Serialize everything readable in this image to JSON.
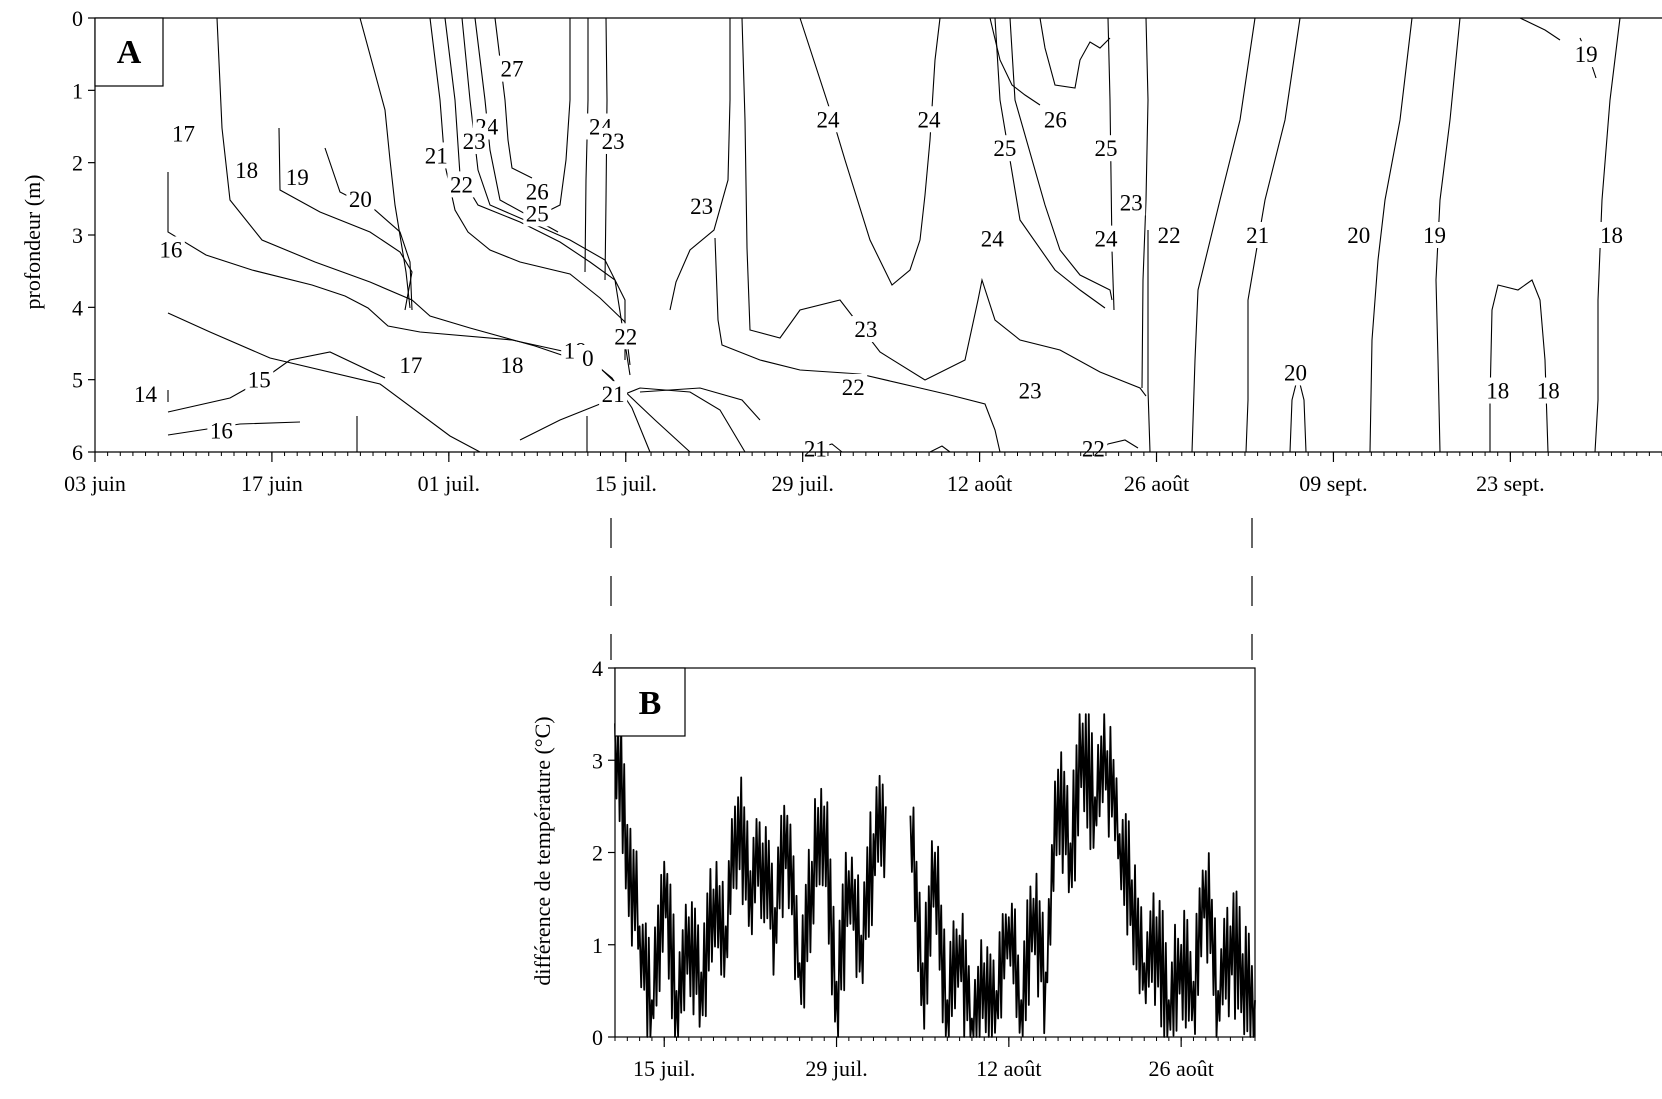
{
  "chart_data": [
    {
      "panel": "A",
      "type": "contour",
      "title": "",
      "xlabel": "",
      "ylabel": "profondeur (m)",
      "panel_label": "A",
      "x_range": [
        "2023-06-03",
        "2023-10-05"
      ],
      "ylim": [
        6,
        0
      ],
      "y_ticks": [
        "0",
        "1",
        "2",
        "3",
        "4",
        "5",
        "6"
      ],
      "x_ticks": [
        "03 juin",
        "17 juin",
        "01 juil.",
        "15 juil.",
        "29 juil.",
        "12 août",
        "26 août",
        "09 sept.",
        "23 sept."
      ],
      "x_tick_dates": [
        "2023-06-03",
        "2023-06-17",
        "2023-07-01",
        "2023-07-15",
        "2023-07-29",
        "2023-08-12",
        "2023-08-26",
        "2023-09-09",
        "2023-09-23"
      ],
      "grid": false,
      "contour_labels": [
        {
          "text": "27",
          "date": "2023-07-06",
          "depth": 0.7
        },
        {
          "text": "24",
          "date": "2023-07-04",
          "depth": 1.5
        },
        {
          "text": "23",
          "date": "2023-07-03",
          "depth": 1.7
        },
        {
          "text": "21",
          "date": "2023-06-30",
          "depth": 1.9
        },
        {
          "text": "22",
          "date": "2023-07-02",
          "depth": 2.3
        },
        {
          "text": "26",
          "date": "2023-07-08",
          "depth": 2.4
        },
        {
          "text": "25",
          "date": "2023-07-08",
          "depth": 2.7
        },
        {
          "text": "24",
          "date": "2023-07-13",
          "depth": 1.5
        },
        {
          "text": "23",
          "date": "2023-07-14",
          "depth": 1.7
        },
        {
          "text": "17",
          "date": "2023-06-10",
          "depth": 1.6
        },
        {
          "text": "18",
          "date": "2023-06-15",
          "depth": 2.1
        },
        {
          "text": "19",
          "date": "2023-06-19",
          "depth": 2.2
        },
        {
          "text": "20",
          "date": "2023-06-24",
          "depth": 2.5
        },
        {
          "text": "16",
          "date": "2023-06-09",
          "depth": 3.2
        },
        {
          "text": "15",
          "date": "2023-06-16",
          "depth": 5.0
        },
        {
          "text": "14",
          "date": "2023-06-07",
          "depth": 5.2
        },
        {
          "text": "16",
          "date": "2023-06-13",
          "depth": 5.7
        },
        {
          "text": "17",
          "date": "2023-06-28",
          "depth": 4.8
        },
        {
          "text": "18",
          "date": "2023-07-06",
          "depth": 4.8
        },
        {
          "text": "19",
          "date": "2023-07-11",
          "depth": 4.6
        },
        {
          "text": "0",
          "date": "2023-07-12",
          "depth": 4.7
        },
        {
          "text": "22",
          "date": "2023-07-15",
          "depth": 4.4
        },
        {
          "text": "21",
          "date": "2023-07-14",
          "depth": 5.2
        },
        {
          "text": "23",
          "date": "2023-07-21",
          "depth": 2.6
        },
        {
          "text": "24",
          "date": "2023-07-31",
          "depth": 1.4
        },
        {
          "text": "23",
          "date": "2023-08-03",
          "depth": 4.3
        },
        {
          "text": "22",
          "date": "2023-08-02",
          "depth": 5.1
        },
        {
          "text": "21",
          "date": "2023-07-30",
          "depth": 5.95
        },
        {
          "text": "24",
          "date": "2023-08-08",
          "depth": 1.4
        },
        {
          "text": "25",
          "date": "2023-08-14",
          "depth": 1.8
        },
        {
          "text": "26",
          "date": "2023-08-18",
          "depth": 1.4
        },
        {
          "text": "25",
          "date": "2023-08-22",
          "depth": 1.8
        },
        {
          "text": "24",
          "date": "2023-08-13",
          "depth": 3.05
        },
        {
          "text": "23",
          "date": "2023-08-16",
          "depth": 5.15
        },
        {
          "text": "24",
          "date": "2023-08-22",
          "depth": 3.05
        },
        {
          "text": "23",
          "date": "2023-08-24",
          "depth": 2.55
        },
        {
          "text": "22",
          "date": "2023-08-27",
          "depth": 3.0
        },
        {
          "text": "22",
          "date": "2023-08-21",
          "depth": 5.95
        },
        {
          "text": "21",
          "date": "2023-09-03",
          "depth": 3.0
        },
        {
          "text": "20",
          "date": "2023-09-11",
          "depth": 3.0
        },
        {
          "text": "19",
          "date": "2023-09-17",
          "depth": 3.0
        },
        {
          "text": "20",
          "date": "2023-09-06",
          "depth": 4.9
        },
        {
          "text": "18",
          "date": "2023-09-22",
          "depth": 5.15
        },
        {
          "text": "18",
          "date": "2023-09-26",
          "depth": 5.15
        },
        {
          "text": "18",
          "date": "2023-10-01",
          "depth": 3.0
        },
        {
          "text": "19",
          "date": "2023-09-29",
          "depth": 0.5
        }
      ]
    },
    {
      "panel": "B",
      "type": "line",
      "title": "",
      "xlabel": "",
      "ylabel": "différence de température (°C)",
      "panel_label": "B",
      "x_range": [
        "2023-07-11",
        "2023-09-01"
      ],
      "ylim": [
        0,
        4
      ],
      "y_ticks": [
        "0",
        "1",
        "2",
        "3",
        "4"
      ],
      "x_ticks": [
        "15 juil.",
        "29 juil.",
        "12 août",
        "26 août"
      ],
      "x_tick_dates": [
        "2023-07-15",
        "2023-07-29",
        "2023-08-12",
        "2023-08-26"
      ],
      "grid": false,
      "series": [
        {
          "x": [
            "2023-07-11",
            "2023-07-12",
            "2023-07-13",
            "2023-07-14",
            "2023-07-15",
            "2023-07-16",
            "2023-07-17",
            "2023-07-18",
            "2023-07-19",
            "2023-07-20",
            "2023-07-21",
            "2023-07-22",
            "2023-07-23",
            "2023-07-24",
            "2023-07-25",
            "2023-07-26",
            "2023-07-27",
            "2023-07-28",
            "2023-07-29",
            "2023-07-30",
            "2023-07-31",
            "2023-08-01",
            "2023-08-02",
            null,
            "2023-08-04",
            "2023-08-05",
            "2023-08-06",
            "2023-08-07",
            "2023-08-08",
            "2023-08-09",
            "2023-08-10",
            "2023-08-11",
            "2023-08-12",
            "2023-08-13",
            "2023-08-14",
            "2023-08-15",
            "2023-08-16",
            "2023-08-17",
            "2023-08-18",
            "2023-08-19",
            "2023-08-20",
            "2023-08-21",
            "2023-08-22",
            "2023-08-23",
            "2023-08-24",
            "2023-08-25",
            "2023-08-26",
            "2023-08-27",
            "2023-08-28",
            "2023-08-29",
            "2023-08-30",
            "2023-08-31",
            "2023-09-01"
          ],
          "values": [
            3.4,
            2.3,
            1.2,
            0.4,
            1.9,
            0.5,
            1.3,
            0.7,
            1.6,
            1.2,
            2.6,
            1.8,
            2.1,
            1.4,
            2.4,
            0.8,
            1.9,
            2.5,
            0.6,
            1.8,
            1.1,
            2.2,
            2.5,
            null,
            2.4,
            0.8,
            2.0,
            0.4,
            1.1,
            0.2,
            0.8,
            0.5,
            1.3,
            0.4,
            1.5,
            0.7,
            2.9,
            2.1,
            3.4,
            2.6,
            3.1,
            2.2,
            1.7,
            0.8,
            1.3,
            0.4,
            1.0,
            0.6,
            1.8,
            0.5,
            1.2,
            0.9,
            0.4
          ]
        }
      ]
    }
  ]
}
